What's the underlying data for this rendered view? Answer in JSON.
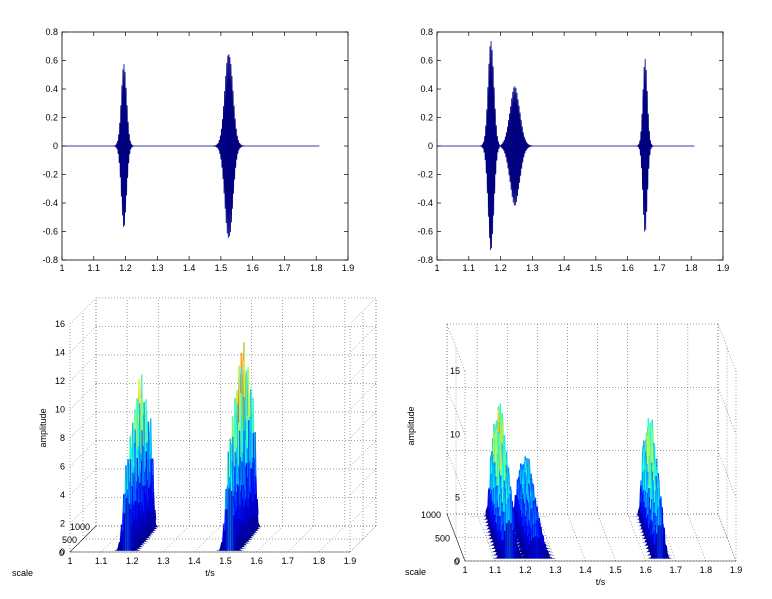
{
  "chart_data": [
    {
      "type": "line",
      "title": "",
      "xlabel": "",
      "ylabel": "",
      "xlim": [
        1,
        1.9
      ],
      "ylim": [
        -0.8,
        0.8
      ],
      "x_range": [
        1.0,
        1.81
      ],
      "xticks": [
        "1",
        "1.1",
        "1.2",
        "1.3",
        "1.4",
        "1.5",
        "1.6",
        "1.7",
        "1.8",
        "1.9"
      ],
      "yticks": [
        "0.8",
        "0.6",
        "0.4",
        "0.2",
        "0",
        "-0.2",
        "-0.4",
        "-0.6",
        "-0.8"
      ],
      "color": "#000080",
      "bursts": [
        {
          "center": 1.195,
          "amplitude": 0.58,
          "width": 0.012,
          "freq": 300
        },
        {
          "center": 1.525,
          "amplitude": 0.67,
          "width": 0.018,
          "freq": 300
        }
      ]
    },
    {
      "type": "line",
      "title": "",
      "xlabel": "",
      "ylabel": "",
      "xlim": [
        1,
        1.9
      ],
      "ylim": [
        -0.8,
        0.8
      ],
      "x_range": [
        1.0,
        1.81
      ],
      "xticks": [
        "1",
        "1.1",
        "1.2",
        "1.3",
        "1.4",
        "1.5",
        "1.6",
        "1.7",
        "1.8",
        "1.9"
      ],
      "yticks": [
        "0.8",
        "0.6",
        "0.4",
        "0.2",
        "0",
        "-0.2",
        "-0.4",
        "-0.6",
        "-0.8"
      ],
      "color": "#000080",
      "bursts": [
        {
          "center": 1.17,
          "amplitude": 0.75,
          "width": 0.013,
          "freq": 300
        },
        {
          "center": 1.245,
          "amplitude": 0.42,
          "width": 0.022,
          "freq": 300
        },
        {
          "center": 1.655,
          "amplitude": 0.62,
          "width": 0.01,
          "freq": 300
        }
      ]
    },
    {
      "type": "surface3d",
      "title": "",
      "xlabel": "t/s",
      "ylabel": "scale",
      "zlabel": "amplitude",
      "xlim": [
        1,
        1.9
      ],
      "zlim": [
        0,
        16
      ],
      "xticks": [
        "1",
        "1.1",
        "1.2",
        "1.3",
        "1.4",
        "1.5",
        "1.6",
        "1.7",
        "1.8",
        "1.9"
      ],
      "zticks": [
        "16",
        "14",
        "12",
        "10",
        "8",
        "6",
        "4",
        "2",
        "0"
      ],
      "scale_ticks": [
        "1000",
        "500",
        "0"
      ],
      "peaks": [
        {
          "t": 1.18,
          "amplitude": 12,
          "width": 0.012
        },
        {
          "t": 1.51,
          "amplitude": 14.5,
          "width": 0.012
        }
      ]
    },
    {
      "type": "surface3d",
      "title": "",
      "xlabel": "t/s",
      "ylabel": "scale",
      "zlabel": "amplitude",
      "xlim": [
        1,
        1.9
      ],
      "zlim": [
        0,
        15
      ],
      "xticks": [
        "1",
        "1.1",
        "1.2",
        "1.3",
        "1.4",
        "1.5",
        "1.6",
        "1.7",
        "1.8",
        "1.9"
      ],
      "zticks": [
        "15",
        "10",
        "5",
        "0"
      ],
      "scale_ticks": [
        "1000",
        "500",
        "0"
      ],
      "peaks": [
        {
          "t": 1.15,
          "amplitude": 11,
          "width": 0.016
        },
        {
          "t": 1.24,
          "amplitude": 6.5,
          "width": 0.02
        },
        {
          "t": 1.65,
          "amplitude": 10,
          "width": 0.012
        }
      ]
    }
  ]
}
